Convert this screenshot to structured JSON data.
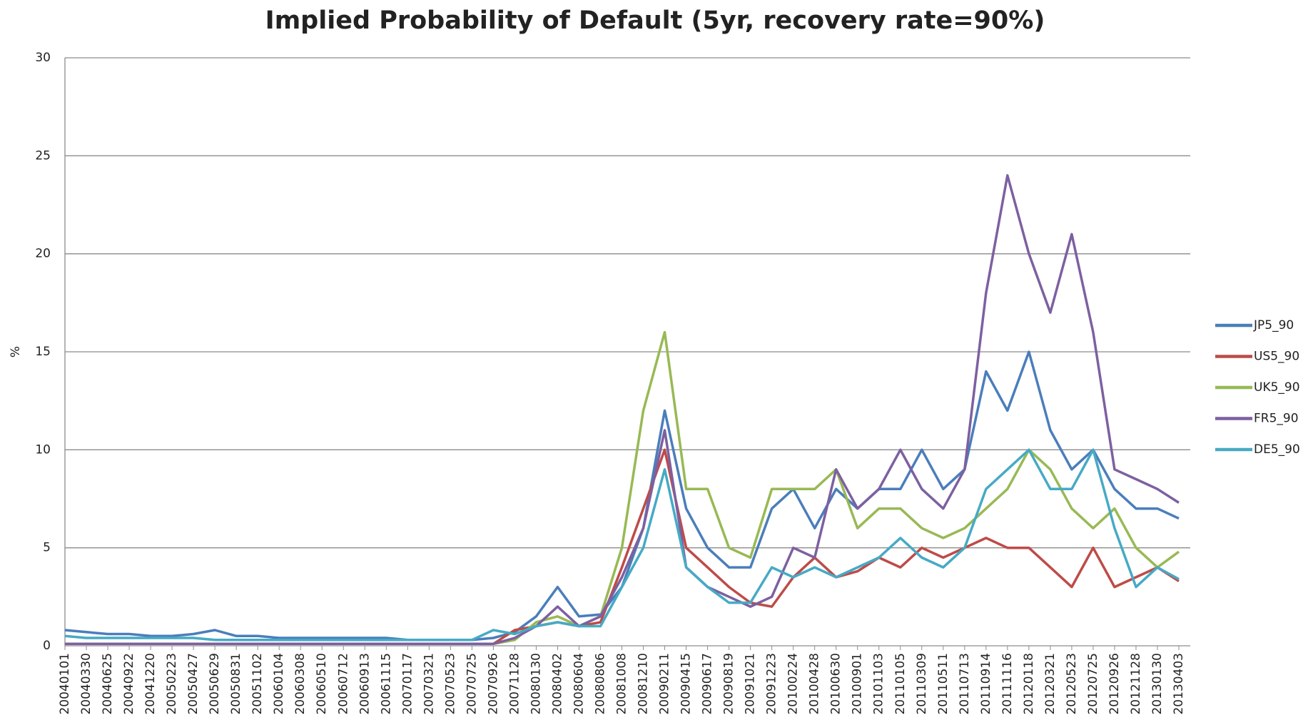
{
  "chart_data": {
    "type": "line",
    "title": "Implied Probability of Default (5yr, recovery rate=90%)",
    "ylabel": "%",
    "categories": [
      "20040101",
      "20040330",
      "20040625",
      "20040922",
      "20041220",
      "20050223",
      "20050427",
      "20050629",
      "20050831",
      "20051102",
      "20060104",
      "20060308",
      "20060510",
      "20060712",
      "20060913",
      "20061115",
      "20070117",
      "20070321",
      "20070523",
      "20070725",
      "20070926",
      "20071128",
      "20080130",
      "20080402",
      "20080604",
      "20080806",
      "20081008",
      "20081210",
      "20090211",
      "20090415",
      "20090617",
      "20090819",
      "20091021",
      "20091223",
      "20100224",
      "20100428",
      "20100630",
      "20100901",
      "20101103",
      "20110105",
      "20110309",
      "20110511",
      "20110713",
      "20110914",
      "20111116",
      "20120118",
      "20120321",
      "20120523",
      "20120725",
      "20120926",
      "20121128",
      "20130130",
      "20130403"
    ],
    "series": [
      {
        "name": "JP5_90",
        "color": "#4a7ebb",
        "values": [
          0.8,
          0.7,
          0.6,
          0.6,
          0.5,
          0.5,
          0.6,
          0.8,
          0.5,
          0.5,
          0.4,
          0.4,
          0.4,
          0.4,
          0.4,
          0.4,
          0.3,
          0.3,
          0.3,
          0.3,
          0.4,
          0.7,
          1.5,
          3,
          1.5,
          1.6,
          3,
          6,
          12,
          7,
          5,
          4,
          4,
          7,
          8,
          6,
          8,
          7,
          8,
          8,
          10,
          8,
          9,
          14,
          12,
          15,
          11,
          9,
          10,
          8,
          7,
          7,
          6.5
        ]
      },
      {
        "name": "US5_90",
        "color": "#be4b48",
        "values": [
          0.1,
          0.1,
          0.1,
          0.1,
          0.1,
          0.1,
          0.1,
          0.1,
          0.1,
          0.1,
          0.1,
          0.1,
          0.1,
          0.1,
          0.1,
          0.1,
          0.1,
          0.1,
          0.1,
          0.1,
          0.1,
          0.8,
          1,
          1.2,
          1,
          1.2,
          4,
          7,
          10,
          5,
          4,
          3,
          2.2,
          2,
          3.5,
          4.5,
          3.5,
          3.8,
          4.5,
          4,
          5,
          4.5,
          5,
          5.5,
          5,
          5,
          4,
          3,
          5,
          3,
          3.5,
          4,
          3.3
        ]
      },
      {
        "name": "UK5_90",
        "color": "#98b954",
        "values": [
          0.1,
          0.1,
          0.1,
          0.1,
          0.1,
          0.1,
          0.1,
          0.1,
          0.1,
          0.1,
          0.1,
          0.1,
          0.1,
          0.1,
          0.1,
          0.1,
          0.1,
          0.1,
          0.1,
          0.1,
          0.1,
          0.3,
          1.2,
          1.5,
          1,
          1.5,
          5,
          12,
          16,
          8,
          8,
          5,
          4.5,
          8,
          8,
          8,
          9,
          6,
          7,
          7,
          6,
          5.5,
          6,
          7,
          8,
          10,
          9,
          7,
          6,
          7,
          5,
          4,
          4.8
        ]
      },
      {
        "name": "FR5_90",
        "color": "#7d60a0",
        "values": [
          0.1,
          0.1,
          0.1,
          0.1,
          0.1,
          0.1,
          0.1,
          0.1,
          0.1,
          0.1,
          0.1,
          0.1,
          0.1,
          0.1,
          0.1,
          0.1,
          0.1,
          0.1,
          0.1,
          0.1,
          0.1,
          0.4,
          1,
          2,
          1,
          1.5,
          3.5,
          6,
          11,
          4,
          3,
          2.5,
          2,
          2.5,
          5,
          4.5,
          9,
          7,
          8,
          10,
          8,
          7,
          9,
          18,
          24,
          20,
          17,
          21,
          16,
          9,
          8.5,
          8,
          7.3
        ]
      },
      {
        "name": "DE5_90",
        "color": "#46aac5",
        "values": [
          0.5,
          0.4,
          0.4,
          0.4,
          0.4,
          0.4,
          0.4,
          0.3,
          0.3,
          0.3,
          0.3,
          0.3,
          0.3,
          0.3,
          0.3,
          0.3,
          0.3,
          0.3,
          0.3,
          0.3,
          0.8,
          0.6,
          1,
          1.2,
          1,
          1,
          3,
          5,
          9,
          4,
          3,
          2.2,
          2.2,
          4,
          3.5,
          4,
          3.5,
          4,
          4.5,
          5.5,
          4.5,
          4,
          5,
          8,
          9,
          10,
          8,
          8,
          10,
          6,
          3,
          4,
          3.4
        ]
      }
    ],
    "ylim": [
      0,
      30
    ],
    "yticks": [
      0,
      5,
      10,
      15,
      20,
      25,
      30
    ],
    "grid": true,
    "legend": "right"
  }
}
